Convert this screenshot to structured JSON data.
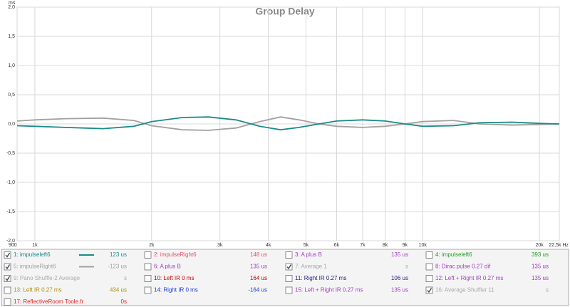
{
  "chart_data": {
    "type": "line",
    "title": "Group Delay",
    "y_unit": "ms",
    "x": [
      900,
      1000,
      1200,
      1500,
      1800,
      2000,
      2400,
      2800,
      3300,
      3800,
      4300,
      4800,
      5400,
      6000,
      7000,
      8000,
      9000,
      10000,
      12000,
      14000,
      17000,
      20000,
      22500
    ],
    "xlim": [
      900,
      22500
    ],
    "log_x": true,
    "xticks": [
      900,
      {
        "value": 1000,
        "label": "1k"
      },
      {
        "value": 2000,
        "label": "2k"
      },
      {
        "value": 3000,
        "label": "3k"
      },
      {
        "value": 4000,
        "label": "4k"
      },
      {
        "value": 5000,
        "label": "5k"
      },
      {
        "value": 6000,
        "label": "6k"
      },
      {
        "value": 7000,
        "label": "7k"
      },
      {
        "value": 8000,
        "label": "8k"
      },
      {
        "value": 9000,
        "label": "9k"
      },
      {
        "value": 10000,
        "label": "10k"
      },
      {
        "value": 20000,
        "label": "20k"
      },
      {
        "value": 22500,
        "label": "22,5k Hz"
      }
    ],
    "ylim": [
      -2,
      2
    ],
    "yticks": [
      {
        "value": 2,
        "label": "2,0"
      },
      {
        "value": 1.5,
        "label": "1,5"
      },
      {
        "value": 1,
        "label": "1,0"
      },
      {
        "value": 0.5,
        "label": "0,5"
      },
      {
        "value": 0,
        "label": "0,0"
      },
      {
        "value": -0.5,
        "label": "-0,5"
      },
      {
        "value": -1,
        "label": "-1,0"
      },
      {
        "value": -1.5,
        "label": "-1,5"
      },
      {
        "value": -2,
        "label": "-2,0"
      }
    ],
    "grid": true,
    "series": [
      {
        "name": "1: impulseleft6",
        "color": "#1a8a8a",
        "checked": true,
        "readout": "123 us",
        "values": [
          -0.03,
          -0.04,
          -0.06,
          -0.08,
          -0.04,
          0.04,
          0.11,
          0.12,
          0.07,
          -0.04,
          -0.1,
          -0.06,
          0.0,
          0.05,
          0.07,
          0.05,
          0.0,
          -0.04,
          -0.03,
          0.02,
          0.03,
          0.01,
          0.0
        ]
      },
      {
        "name": "2: impulseRight6",
        "color": "#e0506a",
        "checked": false,
        "readout": "148 us"
      },
      {
        "name": "3: A plus B",
        "color": "#a040c0",
        "checked": false,
        "readout": "135 us"
      },
      {
        "name": "4: impulseleft6",
        "color": "#20a020",
        "checked": false,
        "readout": "393 us"
      },
      {
        "name": "5: impulseRight6",
        "color": "#a0a0a0",
        "checked": true,
        "readout": "-123 us",
        "values": [
          0.05,
          0.07,
          0.09,
          0.1,
          0.06,
          -0.03,
          -0.1,
          -0.11,
          -0.07,
          0.04,
          0.12,
          0.07,
          0.0,
          -0.04,
          -0.06,
          -0.04,
          0.0,
          0.04,
          0.06,
          0.0,
          -0.02,
          -0.01,
          0.0
        ]
      },
      {
        "name": "6: A plus B",
        "color": "#a040c0",
        "checked": false,
        "readout": "135 us"
      },
      {
        "name": "7: Average 1",
        "color": "#aaaaaa",
        "checked": true,
        "readout": "s"
      },
      {
        "name": "8: Dirac pulse 0.27 dif",
        "color": "#a040c0",
        "checked": false,
        "readout": "135 us"
      },
      {
        "name": "9: Pano Shuffle-2 Average",
        "color": "#aaaaaa",
        "checked": true,
        "readout": "s"
      },
      {
        "name": "10: Left IR 0 ms",
        "color": "#c00000",
        "checked": false,
        "readout": "164 us"
      },
      {
        "name": "11: Right IR 0.27 ms",
        "color": "#202080",
        "checked": false,
        "readout": "106 us"
      },
      {
        "name": "12: Left + Right IR 0.27 ms",
        "color": "#a040c0",
        "checked": false,
        "readout": "135 us"
      },
      {
        "name": "13: Left IR 0.27 ms",
        "color": "#b09000",
        "checked": false,
        "readout": "434 us"
      },
      {
        "name": "14: Right IR 0 ms",
        "color": "#2040d0",
        "checked": false,
        "readout": "-164 us"
      },
      {
        "name": "15: Left + Right IR 0.27 ms",
        "color": "#a040c0",
        "checked": false,
        "readout": "135 us"
      },
      {
        "name": "16: Average Shuffler 11",
        "color": "#aaaaaa",
        "checked": true,
        "readout": "s"
      },
      {
        "name": "17: ReflectiveRoom Toole.fr",
        "color": "#e02020",
        "checked": false,
        "readout": "0s"
      }
    ]
  }
}
